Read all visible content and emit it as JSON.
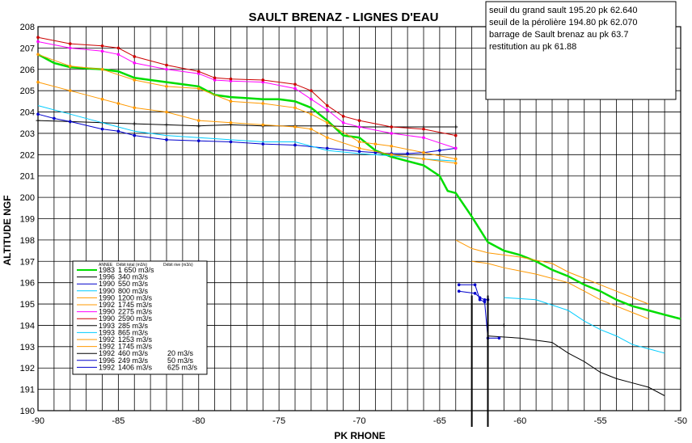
{
  "chart_data": {
    "type": "line",
    "title": "SAULT BRENAZ  -  LIGNES D'EAU",
    "xlabel": "PK RHONE",
    "ylabel": "ALTITUDE NGF",
    "xlim": [
      -90,
      -50
    ],
    "ylim": [
      190,
      208
    ],
    "xticks": [
      -90,
      -85,
      -80,
      -75,
      -70,
      -65,
      -60,
      -55,
      -50
    ],
    "yticks": [
      190,
      191,
      192,
      193,
      194,
      195,
      196,
      197,
      198,
      199,
      200,
      201,
      202,
      203,
      204,
      205,
      206,
      207,
      208
    ],
    "grid": true,
    "notes": [
      "seuil du grand sault 195.20 pk 62.640",
      "seuil de la pérolière 194.80 pk 62.070",
      "barrage de Sault brenaz  au pk 63.7",
      "restitution au pk 61.88"
    ],
    "legend": {
      "placement": "lower-left",
      "headers": [
        "ANNEE",
        "Débit total (m3/s)",
        "Débit rive (m3/s)"
      ],
      "rows": [
        {
          "annee": "1983",
          "debit_total": "1 650 m3/s",
          "debit_rive": ""
        },
        {
          "annee": "1996",
          "debit_total": "340 m3/s",
          "debit_rive": ""
        },
        {
          "annee": "1990",
          "debit_total": "550 m3/s",
          "debit_rive": ""
        },
        {
          "annee": "1990",
          "debit_total": "800 m3/s",
          "debit_rive": ""
        },
        {
          "annee": "1990",
          "debit_total": "1200 m3/s",
          "debit_rive": ""
        },
        {
          "annee": "1992",
          "debit_total": "1745 m3/s",
          "debit_rive": ""
        },
        {
          "annee": "1990",
          "debit_total": "2275 m3/s",
          "debit_rive": ""
        },
        {
          "annee": "1990",
          "debit_total": "2590 m3/s",
          "debit_rive": ""
        },
        {
          "annee": "1993",
          "debit_total": "285 m3/s",
          "debit_rive": ""
        },
        {
          "annee": "1993",
          "debit_total": "865 m3/s",
          "debit_rive": ""
        },
        {
          "annee": "1992",
          "debit_total": "1253 m3/s",
          "debit_rive": ""
        },
        {
          "annee": "1992",
          "debit_total": "1745 m3/s",
          "debit_rive": ""
        },
        {
          "annee": "1992",
          "debit_total": "460 m3/s",
          "debit_rive": "20 m3/s"
        },
        {
          "annee": "1996",
          "debit_total": "249 m3/s",
          "debit_rive": "50 m3/s"
        },
        {
          "annee": "1992",
          "debit_total": "1406 m3/s",
          "debit_rive": "625 m3/s"
        }
      ]
    },
    "vertical_markers": [
      -63,
      -62
    ],
    "series": [
      {
        "color": "#00dd00",
        "width": 2.5,
        "marker": "none",
        "x": [
          -90,
          -89,
          -88,
          -87,
          -86,
          -85,
          -84,
          -83,
          -82,
          -81,
          -80,
          -79,
          -78,
          -77,
          -76,
          -75,
          -74,
          -73,
          -72,
          -71,
          -70,
          -69,
          -68,
          -67,
          -66,
          -65,
          -64.5,
          -64,
          -63,
          -62,
          -61,
          -60,
          -59,
          -58,
          -57,
          -56,
          -55,
          -54,
          -53,
          -52,
          -51,
          -50
        ],
        "y": [
          206.7,
          206.3,
          206.1,
          206.05,
          206.0,
          205.9,
          205.6,
          205.5,
          205.4,
          205.3,
          205.2,
          204.8,
          204.7,
          204.65,
          204.6,
          204.6,
          204.5,
          204.2,
          203.6,
          202.9,
          202.8,
          202.2,
          201.9,
          201.7,
          201.5,
          201.0,
          200.3,
          200.2,
          199.1,
          197.9,
          197.5,
          197.3,
          197.0,
          196.6,
          196.3,
          195.9,
          195.6,
          195.2,
          194.9,
          194.7,
          194.5,
          194.3
        ]
      },
      {
        "color": "#000000",
        "width": 1,
        "marker": "plus",
        "x": [
          -90,
          -88,
          -86,
          -84,
          -82,
          -80,
          -78,
          -76,
          -74,
          -72,
          -70,
          -68,
          -66,
          -64
        ],
        "y": [
          203.6,
          203.55,
          203.5,
          203.45,
          203.4,
          203.35,
          203.4,
          203.35,
          203.35,
          203.35,
          203.3,
          203.3,
          203.3,
          203.3
        ]
      },
      {
        "color": "#0000cc",
        "width": 1,
        "marker": "dot",
        "x": [
          -90,
          -89,
          -88,
          -86,
          -85,
          -84,
          -82,
          -80,
          -78,
          -76,
          -74,
          -72,
          -70,
          -69,
          -68,
          -67,
          -66,
          -65,
          -64
        ],
        "y": [
          203.9,
          203.7,
          203.55,
          203.2,
          203.1,
          202.9,
          202.7,
          202.65,
          202.6,
          202.5,
          202.45,
          202.3,
          202.15,
          202.1,
          202.05,
          202.05,
          202.1,
          202.2,
          202.3
        ]
      },
      {
        "color": "#00ccff",
        "width": 1,
        "marker": "none",
        "x": [
          -90,
          -88,
          -86,
          -84,
          -82,
          -80,
          -78,
          -76,
          -74,
          -72,
          -70,
          -68,
          -66,
          -64
        ],
        "y": [
          204.3,
          203.9,
          203.5,
          203.1,
          202.9,
          202.8,
          202.7,
          202.6,
          202.6,
          202.2,
          202.05,
          201.95,
          201.8,
          201.7
        ]
      },
      {
        "color": "#ff9900",
        "width": 1,
        "marker": "dot",
        "x": [
          -90,
          -88,
          -86,
          -85,
          -84,
          -82,
          -80,
          -78,
          -76,
          -74,
          -73,
          -72,
          -70,
          -68,
          -66,
          -64
        ],
        "y": [
          205.4,
          205.0,
          204.6,
          204.4,
          204.2,
          204.0,
          203.6,
          203.5,
          203.4,
          203.3,
          203.2,
          202.8,
          202.3,
          202.0,
          201.8,
          201.6
        ]
      },
      {
        "color": "#ff9900",
        "width": 1,
        "marker": "dot",
        "x": [
          -90,
          -88,
          -86,
          -84,
          -82,
          -80,
          -78,
          -76,
          -74,
          -73,
          -72,
          -70,
          -69,
          -68,
          -66,
          -64
        ],
        "y": [
          206.7,
          206.15,
          206.0,
          205.5,
          205.2,
          205.1,
          204.5,
          204.4,
          204.2,
          203.9,
          203.5,
          202.6,
          202.5,
          202.4,
          202.1,
          201.8
        ]
      },
      {
        "color": "#ff00ff",
        "width": 1,
        "marker": "dot",
        "x": [
          -90,
          -88,
          -86,
          -85,
          -84,
          -82,
          -80,
          -79,
          -78,
          -76,
          -74,
          -73,
          -72,
          -71,
          -70,
          -68,
          -66,
          -64
        ],
        "y": [
          207.3,
          207.0,
          206.85,
          206.7,
          206.3,
          206.0,
          205.8,
          205.5,
          205.45,
          205.4,
          205.1,
          204.6,
          204.1,
          203.5,
          203.3,
          203.0,
          202.8,
          202.3
        ]
      },
      {
        "color": "#cc0000",
        "width": 1,
        "marker": "dot",
        "x": [
          -90,
          -88,
          -86,
          -85,
          -84,
          -82,
          -80,
          -79,
          -78,
          -76,
          -74,
          -73,
          -72,
          -71,
          -70,
          -68,
          -66,
          -64
        ],
        "y": [
          207.5,
          207.2,
          207.1,
          207.0,
          206.6,
          206.2,
          205.9,
          205.6,
          205.55,
          205.5,
          205.3,
          205.0,
          204.3,
          203.8,
          203.6,
          203.3,
          203.2,
          202.9
        ]
      },
      {
        "color": "#000000",
        "width": 1,
        "marker": "none",
        "x": [
          -62,
          -60,
          -58,
          -57,
          -56,
          -55,
          -54,
          -53,
          -52,
          -51
        ],
        "y": [
          193.5,
          193.4,
          193.2,
          192.7,
          192.3,
          191.8,
          191.5,
          191.3,
          191.1,
          190.7
        ]
      },
      {
        "color": "#00ccff",
        "width": 1,
        "marker": "none",
        "x": [
          -61,
          -59,
          -57,
          -56,
          -55,
          -54,
          -53,
          -52,
          -51
        ],
        "y": [
          195.3,
          195.2,
          194.7,
          194.2,
          193.8,
          193.5,
          193.1,
          192.9,
          192.7
        ]
      },
      {
        "color": "#ff9900",
        "width": 1,
        "marker": "none",
        "x": [
          -63,
          -62,
          -61,
          -59,
          -57,
          -56,
          -55,
          -54,
          -53,
          -52
        ],
        "y": [
          197.0,
          196.9,
          196.7,
          196.4,
          196.0,
          195.6,
          195.2,
          194.9,
          194.6,
          194.3
        ]
      },
      {
        "color": "#ff9900",
        "width": 1,
        "marker": "none",
        "x": [
          -64,
          -63,
          -62,
          -61,
          -60,
          -58,
          -57,
          -56,
          -55,
          -54,
          -53,
          -52
        ],
        "y": [
          198.0,
          197.6,
          197.4,
          197.3,
          197.2,
          196.9,
          196.5,
          196.2,
          195.9,
          195.6,
          195.3,
          195.0
        ]
      },
      {
        "color": "#000000",
        "width": 1,
        "marker": "plus",
        "x": [
          -62,
          -61
        ],
        "y": [
          194.0,
          194.0
        ]
      },
      {
        "color": "#0000cc",
        "width": 1,
        "marker": "dot",
        "x": [
          -63.8,
          -62.8,
          -62.5,
          -62.2,
          -62.0
        ],
        "y": [
          195.6,
          195.5,
          195.3,
          195.2,
          195.2
        ]
      },
      {
        "color": "#0000cc",
        "width": 1,
        "marker": "dot",
        "x": [
          -63.8,
          -62.8,
          -62.5,
          -62.2,
          -62.0,
          -61.3
        ],
        "y": [
          195.9,
          195.9,
          195.2,
          195.1,
          193.4,
          193.4
        ]
      }
    ]
  }
}
